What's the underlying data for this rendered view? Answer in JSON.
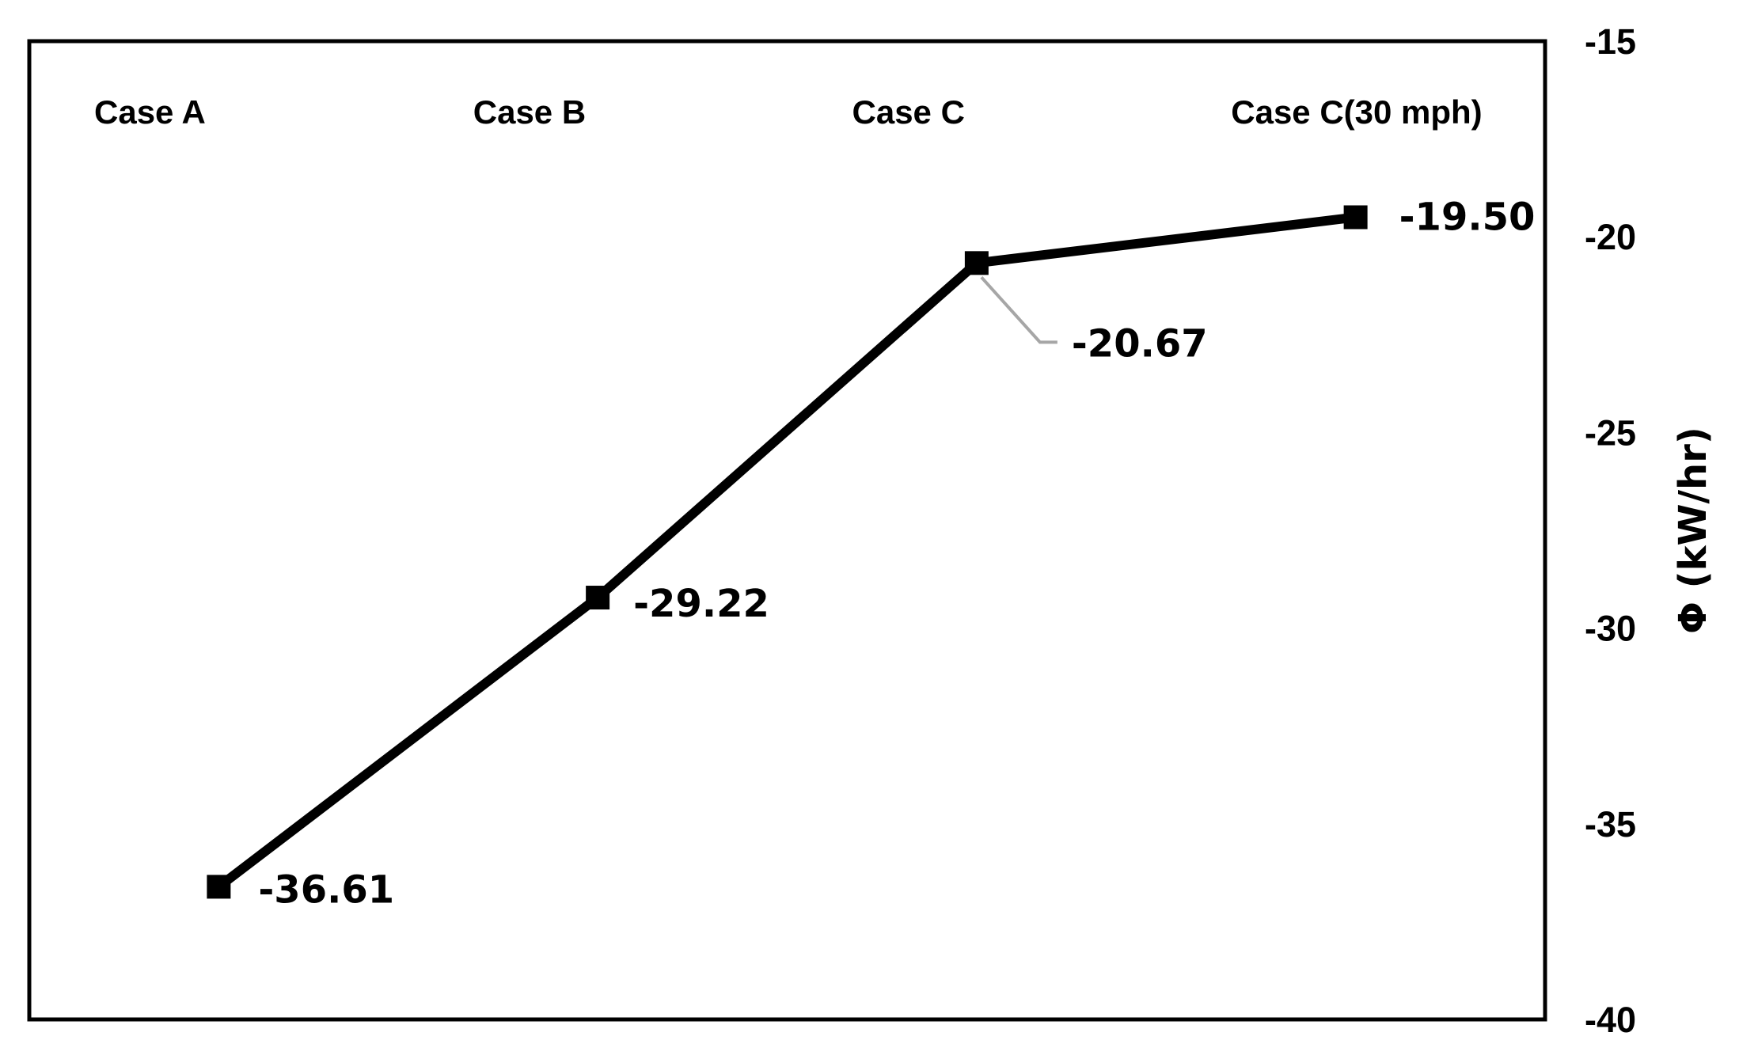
{
  "chart_data": {
    "type": "line",
    "title": "",
    "xlabel": "",
    "ylabel": "Φ (kW/hr)",
    "y_axis_position": "right",
    "x_labels_position": "top",
    "categories": [
      "Case A",
      "Case B",
      "Case C",
      "Case C(30 mph)"
    ],
    "series": [
      {
        "values": [
          -36.61,
          -29.22,
          -20.67,
          -19.5
        ],
        "value_labels": [
          "-36.61",
          "-29.22",
          "-20.67",
          "-19.50"
        ],
        "color": "#000000",
        "marker": "square"
      }
    ],
    "ylim": [
      -40,
      -15
    ],
    "yticks": [
      -15,
      -20,
      -25,
      -30,
      -35,
      -40
    ],
    "ytick_labels": [
      "-15",
      "-20",
      "-25",
      "-30",
      "-35",
      "-40"
    ],
    "grid": false,
    "legend": false,
    "leader_line_color": "#a6a6a6"
  }
}
